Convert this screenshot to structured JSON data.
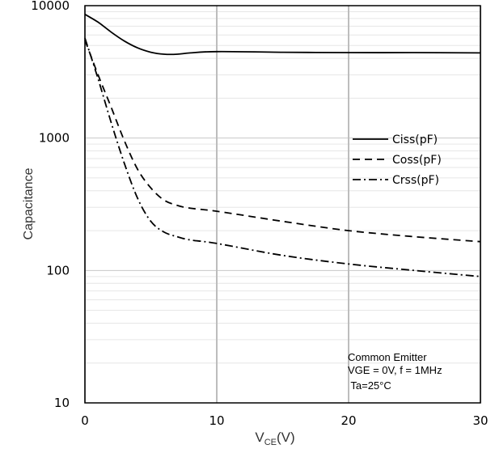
{
  "chart_data": {
    "type": "line",
    "x_scale": "linear",
    "y_scale": "log",
    "xlim": [
      0,
      30
    ],
    "ylim": [
      10,
      10000
    ],
    "x_ticks": [
      "0",
      "10",
      "20",
      "30"
    ],
    "y_ticks": [
      "10",
      "100",
      "1000",
      "10000"
    ],
    "ylabel": "Capacitance",
    "xlabel_main": "V",
    "xlabel_sub": "CE",
    "xlabel_unit": "(V)",
    "grid": "vertical major lines and minor log horizontal lines",
    "legend_position": "right",
    "series": [
      {
        "name": "Ciss(pF)",
        "style": "solid",
        "points": [
          [
            0,
            8600
          ],
          [
            1,
            7500
          ],
          [
            2,
            6300
          ],
          [
            3,
            5400
          ],
          [
            4,
            4800
          ],
          [
            5,
            4450
          ],
          [
            6,
            4300
          ],
          [
            7,
            4300
          ],
          [
            8,
            4400
          ],
          [
            10,
            4500
          ],
          [
            15,
            4450
          ],
          [
            20,
            4420
          ],
          [
            25,
            4420
          ],
          [
            30,
            4400
          ]
        ]
      },
      {
        "name": "Coss(pF)",
        "style": "dashed",
        "points": [
          [
            0,
            5500
          ],
          [
            1,
            3000
          ],
          [
            2,
            1700
          ],
          [
            3,
            950
          ],
          [
            4,
            580
          ],
          [
            5,
            420
          ],
          [
            6,
            340
          ],
          [
            7,
            310
          ],
          [
            8,
            295
          ],
          [
            10,
            280
          ],
          [
            15,
            235
          ],
          [
            20,
            200
          ],
          [
            25,
            180
          ],
          [
            30,
            165
          ]
        ]
      },
      {
        "name": "Crss(pF)",
        "style": "dashdot",
        "points": [
          [
            0,
            5700
          ],
          [
            1,
            2800
          ],
          [
            2,
            1300
          ],
          [
            3,
            640
          ],
          [
            4,
            350
          ],
          [
            5,
            235
          ],
          [
            6,
            195
          ],
          [
            7,
            180
          ],
          [
            8,
            170
          ],
          [
            10,
            160
          ],
          [
            15,
            130
          ],
          [
            20,
            112
          ],
          [
            25,
            100
          ],
          [
            30,
            90
          ]
        ]
      }
    ],
    "annotation": [
      "Common Emitter",
      "VGE = 0V, f = 1MHz",
      " Ta=25°C"
    ]
  }
}
